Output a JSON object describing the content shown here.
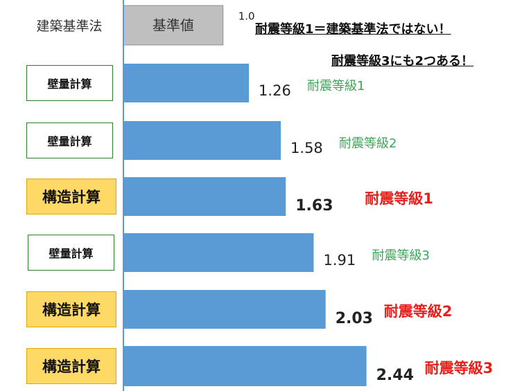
{
  "headlines": {
    "line1": "耐震等級1＝建築基準法ではない！",
    "line2": "耐震等級3にも2つある！"
  },
  "colors": {
    "bar": "#5b9bd5",
    "bar_baseline": "#bfbfbf",
    "axis": "#5b9bd5",
    "grade_green": "#3aa655",
    "grade_red": "#e8201c",
    "struct_fill": "#ffd966"
  },
  "chart_data": {
    "type": "bar",
    "orientation": "horizontal",
    "title": "",
    "xlabel": "",
    "ylabel": "",
    "xlim": [
      0,
      2.44
    ],
    "grid": false,
    "bars": [
      {
        "category": "建築基準法",
        "inner_label": "基準値",
        "value": 1.0,
        "value_label": "1.0",
        "grade": "",
        "style": "baseline"
      },
      {
        "category": "壁量計算",
        "value": 1.26,
        "value_label": "1.26",
        "grade": "耐震等級1",
        "style": "wall"
      },
      {
        "category": "壁量計算",
        "value": 1.58,
        "value_label": "1.58",
        "grade": "耐震等級2",
        "style": "wall"
      },
      {
        "category": "構造計算",
        "value": 1.63,
        "value_label": "1.63",
        "grade": "耐震等級1",
        "style": "struct"
      },
      {
        "category": "壁量計算",
        "value": 1.91,
        "value_label": "1.91",
        "grade": "耐震等級3",
        "style": "wall"
      },
      {
        "category": "構造計算",
        "value": 2.03,
        "value_label": "2.03",
        "grade": "耐震等級2",
        "style": "struct"
      },
      {
        "category": "構造計算",
        "value": 2.44,
        "value_label": "2.44",
        "grade": "耐震等級3",
        "style": "struct"
      }
    ]
  }
}
